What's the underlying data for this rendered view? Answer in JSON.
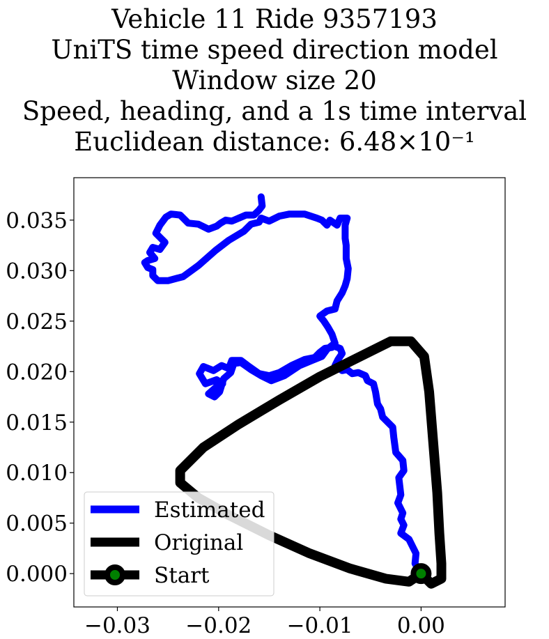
{
  "chart_data": {
    "type": "line",
    "title": [
      "Vehicle 11 Ride 9357193",
      "UniTS time speed direction model",
      "Window size 20",
      "Speed, heading, and a 1s time interval",
      "Euclidean distance: 6.48×10⁻¹"
    ],
    "xlabel": "",
    "ylabel": "",
    "xlim": [
      -0.0343,
      0.0083
    ],
    "ylim": [
      -0.0033,
      0.0392
    ],
    "x_ticks": [
      -0.03,
      -0.02,
      -0.01,
      0.0
    ],
    "x_tick_labels": [
      "−0.03",
      "−0.02",
      "−0.01",
      "0.00"
    ],
    "y_ticks": [
      0.0,
      0.005,
      0.01,
      0.015,
      0.02,
      0.025,
      0.03,
      0.035
    ],
    "y_tick_labels": [
      "0.000",
      "0.005",
      "0.010",
      "0.015",
      "0.020",
      "0.025",
      "0.030",
      "0.035"
    ],
    "grid": false,
    "legend_position": "lower-left",
    "series": [
      {
        "name": "Estimated",
        "color": "#0000ff",
        "points": [
          [
            0.0,
            0.0
          ],
          [
            -0.0006,
            0.001
          ],
          [
            -0.0005,
            0.002
          ],
          [
            -0.0012,
            0.0034
          ],
          [
            -0.002,
            0.004
          ],
          [
            -0.0017,
            0.0048
          ],
          [
            -0.002,
            0.0054
          ],
          [
            -0.0018,
            0.006
          ],
          [
            -0.0023,
            0.007
          ],
          [
            -0.002,
            0.0078
          ],
          [
            -0.0022,
            0.0095
          ],
          [
            -0.0017,
            0.0102
          ],
          [
            -0.0018,
            0.0112
          ],
          [
            -0.0025,
            0.012
          ],
          [
            -0.0027,
            0.0135
          ],
          [
            -0.0028,
            0.0145
          ],
          [
            -0.0038,
            0.0155
          ],
          [
            -0.004,
            0.0163
          ],
          [
            -0.0043,
            0.0168
          ],
          [
            -0.0045,
            0.018
          ],
          [
            -0.0047,
            0.0188
          ],
          [
            -0.0053,
            0.0191
          ],
          [
            -0.0055,
            0.0196
          ],
          [
            -0.0062,
            0.0199
          ],
          [
            -0.0068,
            0.0198
          ],
          [
            -0.0073,
            0.0202
          ],
          [
            -0.0078,
            0.0201
          ],
          [
            -0.0085,
            0.0206
          ],
          [
            -0.0082,
            0.0212
          ],
          [
            -0.0078,
            0.0218
          ],
          [
            -0.008,
            0.0223
          ],
          [
            -0.0088,
            0.0226
          ],
          [
            -0.0093,
            0.0222
          ],
          [
            -0.0098,
            0.0215
          ],
          [
            -0.0108,
            0.0211
          ],
          [
            -0.012,
            0.0206
          ],
          [
            -0.0135,
            0.0196
          ],
          [
            -0.0148,
            0.0191
          ],
          [
            -0.0158,
            0.0196
          ],
          [
            -0.0168,
            0.0202
          ],
          [
            -0.0178,
            0.0209
          ],
          [
            -0.0185,
            0.0208
          ],
          [
            -0.0188,
            0.0199
          ],
          [
            -0.0195,
            0.0193
          ],
          [
            -0.0199,
            0.018
          ],
          [
            -0.0204,
            0.0175
          ],
          [
            -0.021,
            0.0178
          ],
          [
            -0.0202,
            0.0185
          ],
          [
            -0.0196,
            0.0188
          ],
          [
            -0.0202,
            0.0192
          ],
          [
            -0.0213,
            0.0188
          ],
          [
            -0.0219,
            0.0198
          ],
          [
            -0.0215,
            0.0205
          ],
          [
            -0.0205,
            0.0201
          ],
          [
            -0.0197,
            0.0206
          ],
          [
            -0.019,
            0.0203
          ],
          [
            -0.0187,
            0.0211
          ],
          [
            -0.0178,
            0.0211
          ],
          [
            -0.017,
            0.0205
          ],
          [
            -0.016,
            0.0198
          ],
          [
            -0.015,
            0.0196
          ],
          [
            -0.014,
            0.0199
          ],
          [
            -0.0128,
            0.0206
          ],
          [
            -0.0115,
            0.0212
          ],
          [
            -0.0105,
            0.0214
          ],
          [
            -0.01,
            0.0219
          ],
          [
            -0.0095,
            0.0223
          ],
          [
            -0.0088,
            0.0224
          ],
          [
            -0.0085,
            0.0228
          ],
          [
            -0.0088,
            0.0237
          ],
          [
            -0.0092,
            0.0244
          ],
          [
            -0.0096,
            0.025
          ],
          [
            -0.01,
            0.0255
          ],
          [
            -0.0093,
            0.026
          ],
          [
            -0.0085,
            0.0262
          ],
          [
            -0.0083,
            0.027
          ],
          [
            -0.0078,
            0.0278
          ],
          [
            -0.0075,
            0.0285
          ],
          [
            -0.0073,
            0.0292
          ],
          [
            -0.0072,
            0.0302
          ],
          [
            -0.0074,
            0.0312
          ],
          [
            -0.0074,
            0.0325
          ],
          [
            -0.0075,
            0.0332
          ],
          [
            -0.0075,
            0.0345
          ],
          [
            -0.0073,
            0.0352
          ],
          [
            -0.008,
            0.0352
          ],
          [
            -0.0083,
            0.0345
          ],
          [
            -0.009,
            0.035
          ],
          [
            -0.0093,
            0.0345
          ],
          [
            -0.0098,
            0.035
          ],
          [
            -0.0103,
            0.0352
          ],
          [
            -0.0115,
            0.0356
          ],
          [
            -0.013,
            0.0356
          ],
          [
            -0.014,
            0.0354
          ],
          [
            -0.015,
            0.0349
          ],
          [
            -0.0158,
            0.0352
          ],
          [
            -0.016,
            0.0348
          ],
          [
            -0.0168,
            0.0346
          ],
          [
            -0.0175,
            0.0339
          ],
          [
            -0.019,
            0.033
          ],
          [
            -0.0203,
            0.032
          ],
          [
            -0.022,
            0.0305
          ],
          [
            -0.0235,
            0.0294
          ],
          [
            -0.025,
            0.029
          ],
          [
            -0.026,
            0.029
          ],
          [
            -0.0265,
            0.0295
          ],
          [
            -0.0265,
            0.0301
          ],
          [
            -0.027,
            0.0303
          ],
          [
            -0.0273,
            0.0308
          ],
          [
            -0.027,
            0.031
          ],
          [
            -0.0263,
            0.0312
          ],
          [
            -0.0268,
            0.0318
          ],
          [
            -0.0265,
            0.0323
          ],
          [
            -0.0258,
            0.0321
          ],
          [
            -0.0253,
            0.0328
          ],
          [
            -0.0258,
            0.0333
          ],
          [
            -0.0262,
            0.0337
          ],
          [
            -0.0258,
            0.0345
          ],
          [
            -0.0252,
            0.0353
          ],
          [
            -0.0247,
            0.0356
          ],
          [
            -0.0238,
            0.0355
          ],
          [
            -0.023,
            0.0347
          ],
          [
            -0.022,
            0.0346
          ],
          [
            -0.021,
            0.0341
          ],
          [
            -0.0202,
            0.0344
          ],
          [
            -0.0198,
            0.0347
          ],
          [
            -0.0193,
            0.035
          ],
          [
            -0.0187,
            0.0349
          ],
          [
            -0.018,
            0.0352
          ],
          [
            -0.0173,
            0.0355
          ],
          [
            -0.0165,
            0.0355
          ],
          [
            -0.016,
            0.036
          ],
          [
            -0.0157,
            0.0364
          ],
          [
            -0.0158,
            0.0373
          ]
        ]
      },
      {
        "name": "Original",
        "color": "#000000",
        "points": [
          [
            0.0,
            0.0
          ],
          [
            0.001,
            -0.001
          ],
          [
            0.002,
            -0.0005
          ],
          [
            0.002,
            0.001
          ],
          [
            0.0018,
            0.004
          ],
          [
            0.0016,
            0.008
          ],
          [
            0.0012,
            0.013
          ],
          [
            0.0008,
            0.018
          ],
          [
            0.0003,
            0.0215
          ],
          [
            -0.001,
            0.023
          ],
          [
            -0.003,
            0.023
          ],
          [
            -0.006,
            0.0215
          ],
          [
            -0.01,
            0.0195
          ],
          [
            -0.014,
            0.0172
          ],
          [
            -0.018,
            0.0148
          ],
          [
            -0.0215,
            0.0125
          ],
          [
            -0.0238,
            0.0102
          ],
          [
            -0.0238,
            0.009
          ],
          [
            -0.022,
            0.0075
          ],
          [
            -0.019,
            0.0058
          ],
          [
            -0.015,
            0.0038
          ],
          [
            -0.011,
            0.002
          ],
          [
            -0.007,
            0.0005
          ],
          [
            -0.0035,
            -0.0005
          ],
          [
            -0.0012,
            -0.0008
          ],
          [
            0.0,
            0.0
          ]
        ]
      }
    ],
    "start_point": [
      0.0,
      0.0
    ]
  },
  "legend": {
    "items": [
      {
        "label": "Estimated",
        "color": "#0000ff"
      },
      {
        "label": "Original",
        "color": "#000000"
      },
      {
        "label": "Start",
        "color": "#000000",
        "marker_color": "#008000"
      }
    ]
  }
}
